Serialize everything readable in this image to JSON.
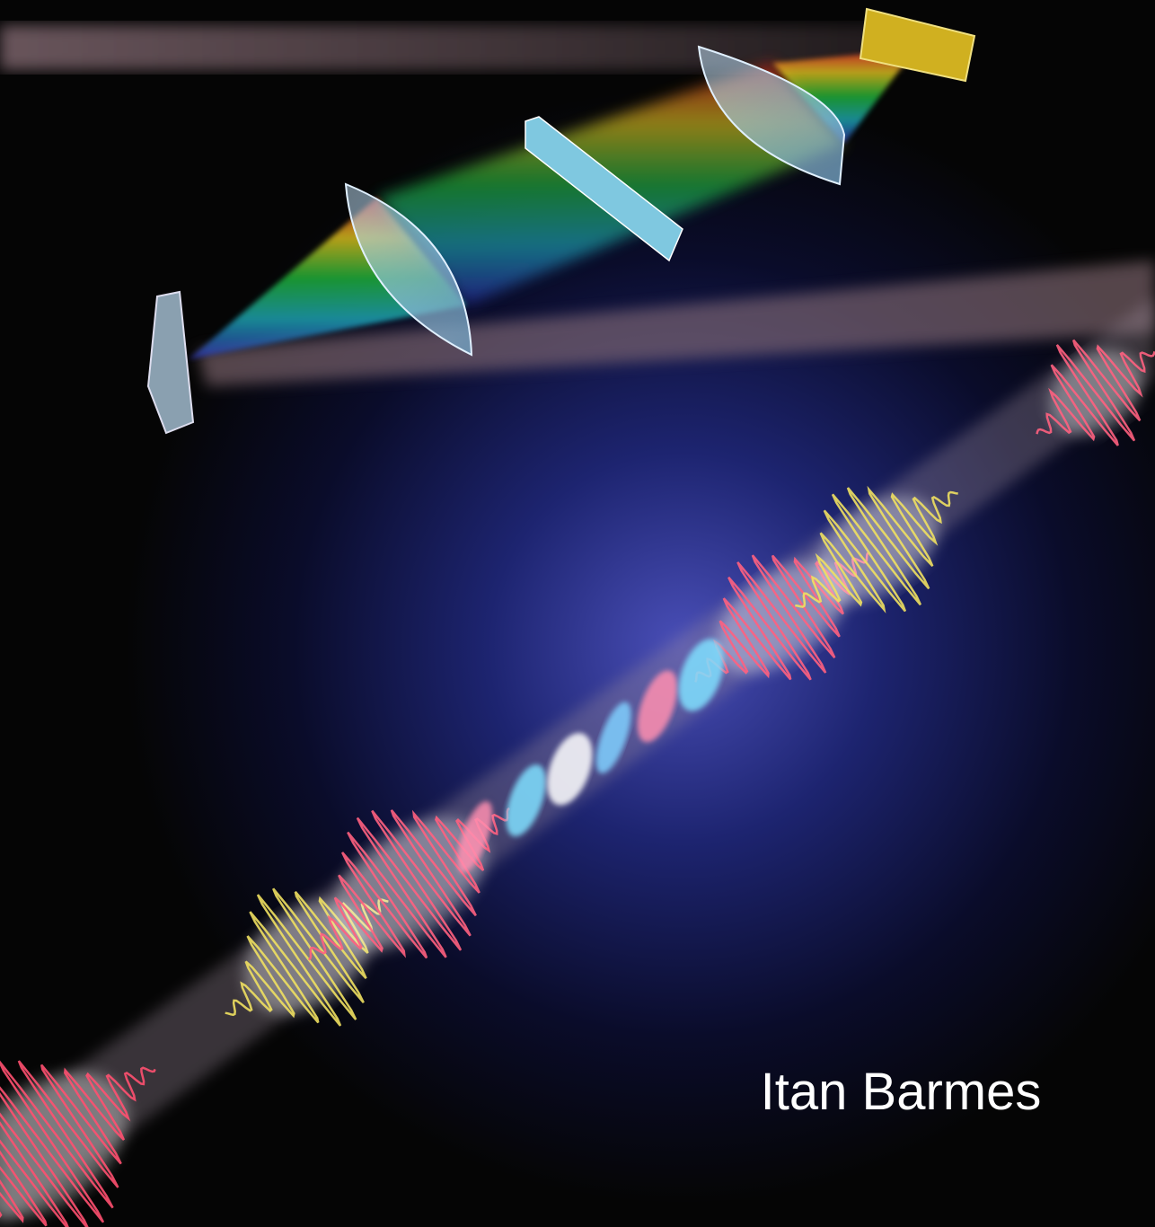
{
  "author": "Itan Barmes"
}
